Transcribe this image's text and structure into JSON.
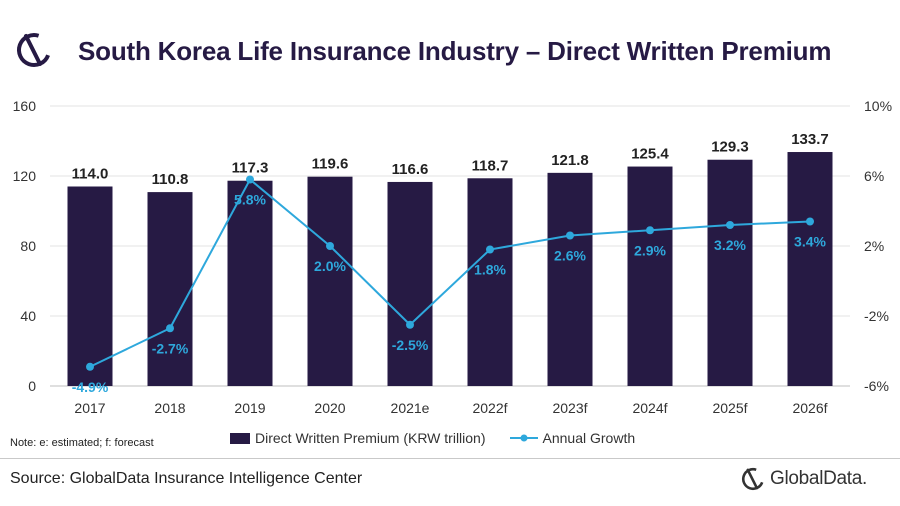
{
  "title": "South Korea Life Insurance Industry – Direct Written Premium",
  "note": "Note: e: estimated; f: forecast",
  "source": "Source: GlobalData Insurance Intelligence Center",
  "brand": "GlobalData.",
  "colors": {
    "bar": "#261a44",
    "line": "#2ea8dc",
    "title": "#261a44"
  },
  "icons": {
    "header_logo": "globaldata-logo-icon",
    "footer_logo": "globaldata-logo-icon"
  },
  "chart_data": {
    "type": "bar",
    "categories": [
      "2017",
      "2018",
      "2019",
      "2020",
      "2021e",
      "2022f",
      "2023f",
      "2024f",
      "2025f",
      "2026f"
    ],
    "series": [
      {
        "name": "Direct Written Premium (KRW trillion)",
        "type": "bar",
        "axis": "left",
        "values": [
          114.0,
          110.8,
          117.3,
          119.6,
          116.6,
          118.7,
          121.8,
          125.4,
          129.3,
          133.7
        ],
        "labels": [
          "114.0",
          "110.8",
          "117.3",
          "119.6",
          "116.6",
          "118.7",
          "121.8",
          "125.4",
          "129.3",
          "133.7"
        ]
      },
      {
        "name": "Annual Growth",
        "type": "line",
        "axis": "right",
        "values": [
          -4.9,
          -2.7,
          5.8,
          2.0,
          -2.5,
          1.8,
          2.6,
          2.9,
          3.2,
          3.4
        ],
        "labels": [
          "-4.9%",
          "-2.7%",
          "5.8%",
          "2.0%",
          "-2.5%",
          "1.8%",
          "2.6%",
          "2.9%",
          "3.2%",
          "3.4%"
        ]
      }
    ],
    "ylim": [
      0,
      160
    ],
    "yticks": [
      "0",
      "40",
      "80",
      "120",
      "160"
    ],
    "y2lim": [
      -6,
      10
    ],
    "y2ticks": [
      "-6%",
      "-2%",
      "2%",
      "6%",
      "10%"
    ],
    "grid": true,
    "legend_position": "bottom"
  }
}
